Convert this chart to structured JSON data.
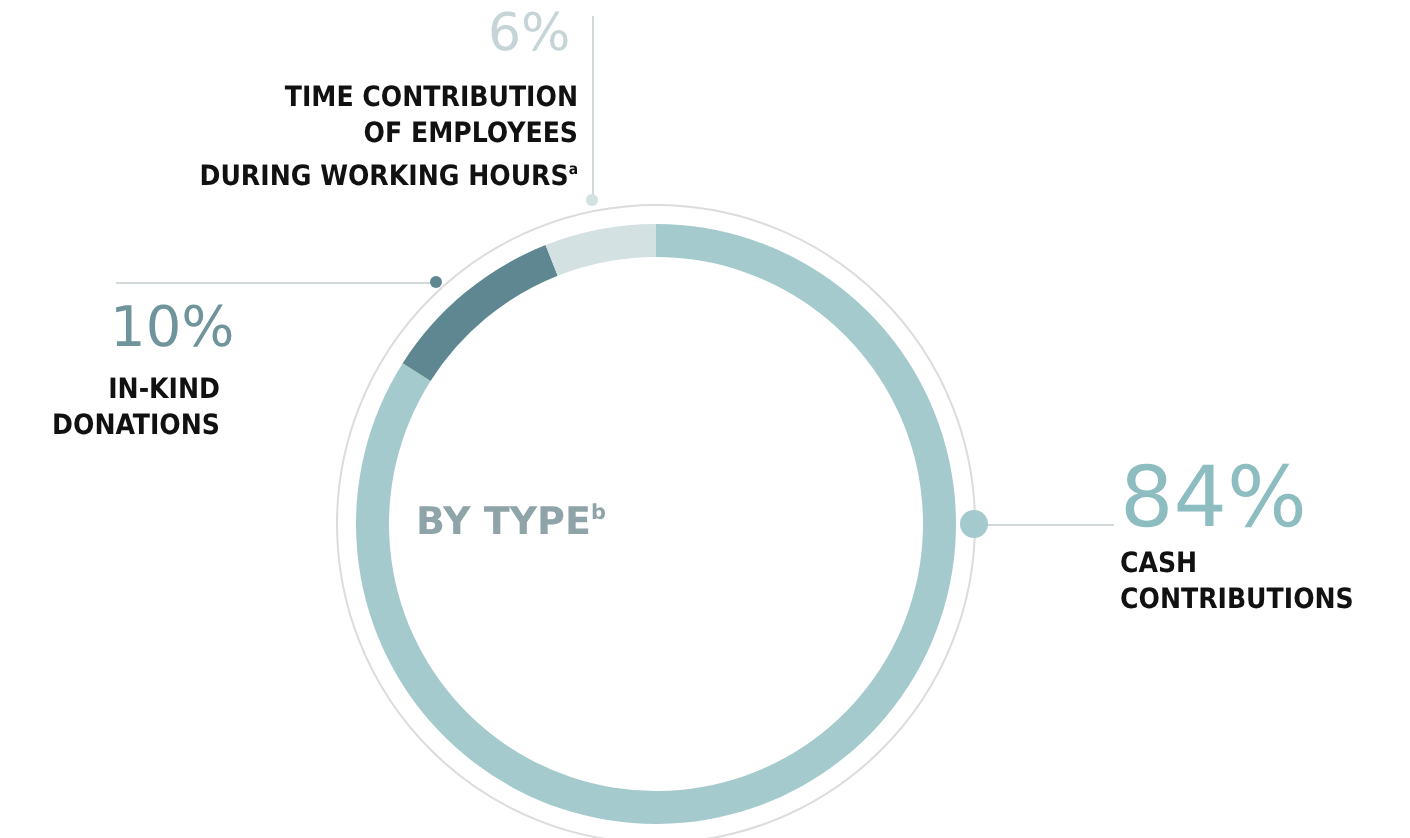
{
  "chart_data": {
    "type": "donut",
    "title": "BY TYPE$^{b}$",
    "categories": [
      "CASH\nCONTRIBUTIONS",
      "IN-KIND\nDONATIONS",
      "TIME CONTRIBUTION\nOF EMPLOYEES\nDURING WORKING HOURS$^{a}$"
    ],
    "values": [
      84,
      10,
      6
    ],
    "colors": [
      "#a5cacd",
      "#5f8792",
      "#d4e1e3"
    ],
    "value_labels": [
      "84%",
      "10%",
      "6%"
    ],
    "legend": false
  }
}
